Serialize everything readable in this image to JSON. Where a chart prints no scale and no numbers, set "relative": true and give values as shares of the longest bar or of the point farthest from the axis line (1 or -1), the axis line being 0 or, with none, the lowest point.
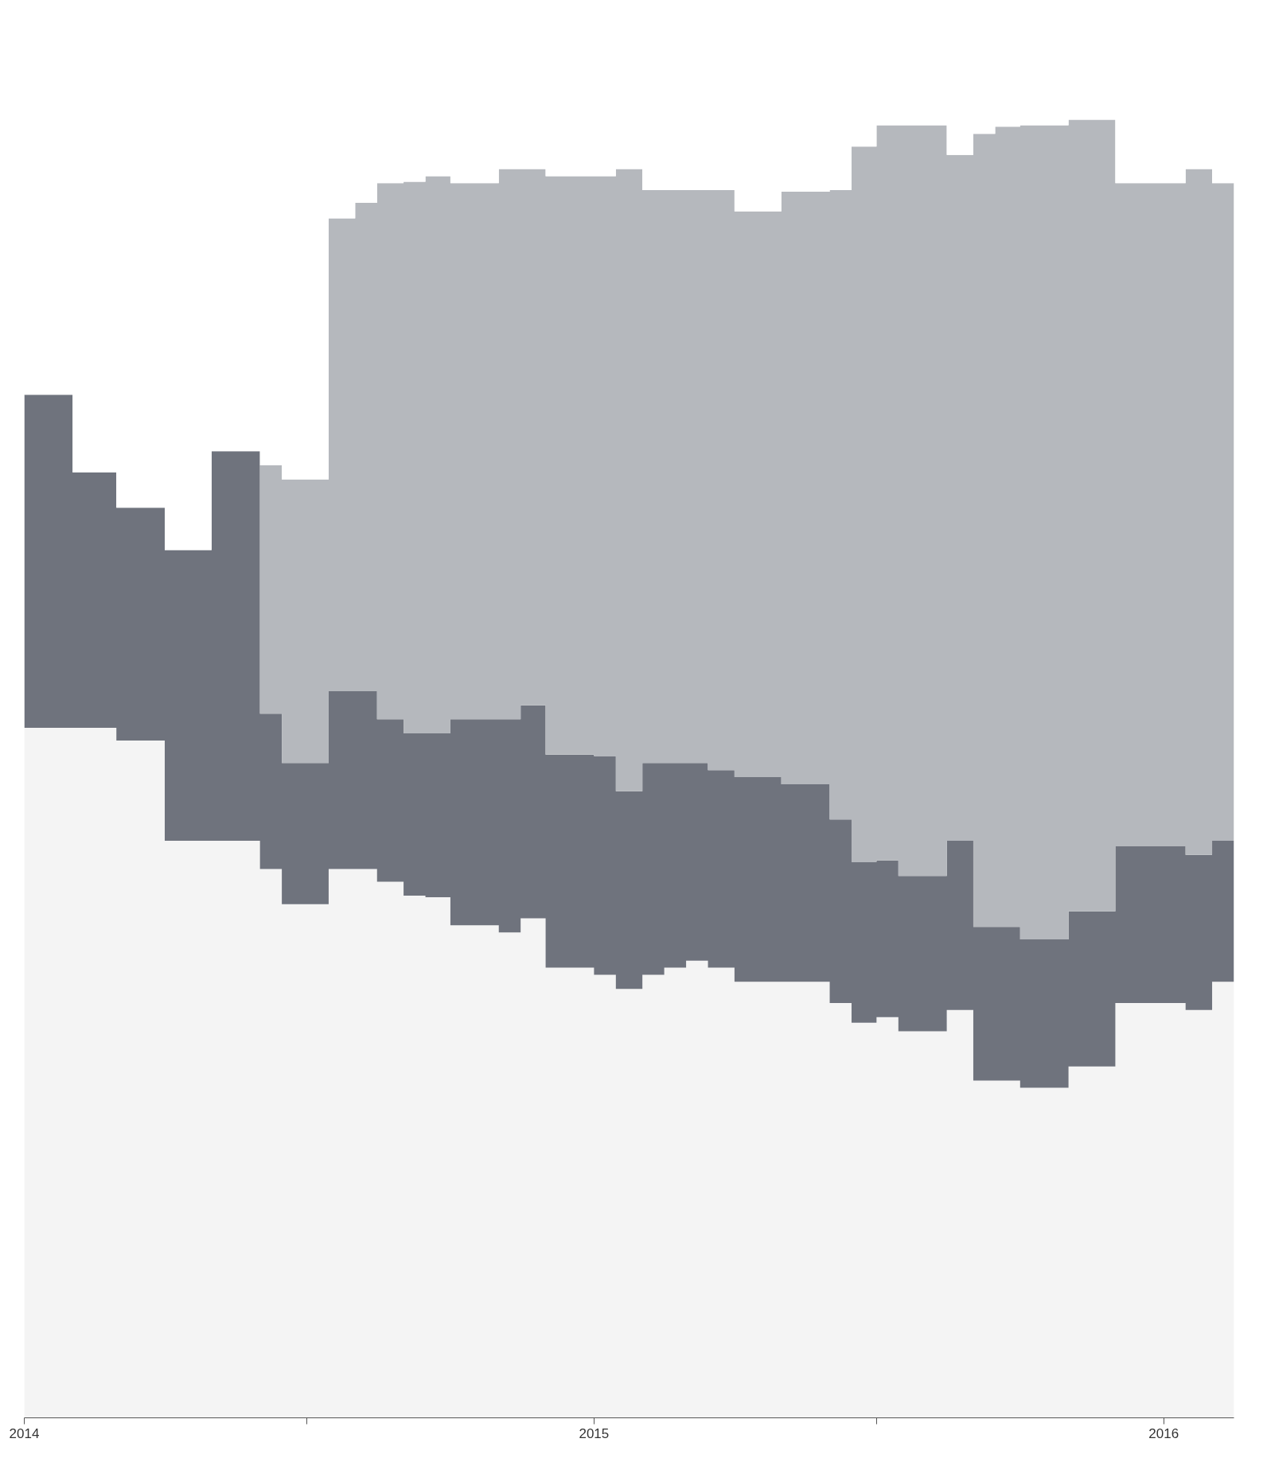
{
  "chart_data": {
    "type": "area",
    "stacked": true,
    "relative": true,
    "tick_labels": "x",
    "x": [
      "2014-01-01",
      "2014-02-01",
      "2014-03-01",
      "2014-04-01",
      "2014-05-01",
      "2014-06-01",
      "2014-06-15",
      "2014-07-15",
      "2014-08-01",
      "2014-08-15",
      "2014-09-01",
      "2014-09-15",
      "2014-10-01",
      "2014-11-01",
      "2014-11-15",
      "2014-12-01",
      "2015-01-01",
      "2015-01-15",
      "2015-02-01",
      "2015-02-15",
      "2015-03-01",
      "2015-03-15",
      "2015-04-01",
      "2015-04-15",
      "2015-05-01",
      "2015-06-01",
      "2015-06-15",
      "2015-07-01",
      "2015-07-15",
      "2015-08-15",
      "2015-09-01",
      "2015-09-15",
      "2015-10-01",
      "2015-11-01",
      "2015-12-01",
      "2016-01-15",
      "2016-02-01",
      "2016-02-15"
    ],
    "xlim": [
      "2014-01-01",
      "2016-02-15"
    ],
    "xticks": [
      {
        "value": "2014",
        "label": "2014"
      },
      {
        "value": "2014-07",
        "label": null
      },
      {
        "value": "2015",
        "label": "2015"
      },
      {
        "value": "2015-07",
        "label": null
      },
      {
        "value": "2016",
        "label": "2016"
      }
    ],
    "series": [
      {
        "color": "#f4f4f4",
        "values": [
          0.489,
          0.489,
          0.48,
          0.409,
          0.409,
          0.389,
          0.364,
          0.389,
          0.389,
          0.38,
          0.37,
          0.369,
          0.349,
          0.344,
          0.354,
          0.319,
          0.314,
          0.304,
          0.314,
          0.319,
          0.324,
          0.319,
          0.309,
          0.309,
          0.309,
          0.294,
          0.28,
          0.284,
          0.274,
          0.289,
          0.239,
          0.239,
          0.234,
          0.249,
          0.294,
          0.289,
          0.309,
          0.309
        ]
      },
      {
        "color": "#6f737d",
        "values": [
          0.236,
          0.181,
          0.165,
          0.206,
          0.276,
          0.11,
          0.1,
          0.126,
          0.126,
          0.115,
          0.115,
          0.116,
          0.146,
          0.151,
          0.151,
          0.151,
          0.155,
          0.14,
          0.15,
          0.145,
          0.14,
          0.14,
          0.145,
          0.145,
          0.14,
          0.13,
          0.114,
          0.111,
          0.11,
          0.12,
          0.109,
          0.109,
          0.105,
          0.11,
          0.111,
          0.11,
          0.1,
          0.1
        ]
      },
      {
        "color": "#b5b8bd",
        "values": [
          0,
          0,
          0,
          0,
          0,
          0.176,
          0.201,
          0.335,
          0.346,
          0.38,
          0.391,
          0.395,
          0.38,
          0.39,
          0.38,
          0.41,
          0.411,
          0.441,
          0.406,
          0.406,
          0.406,
          0.411,
          0.401,
          0.401,
          0.42,
          0.446,
          0.507,
          0.521,
          0.532,
          0.486,
          0.562,
          0.567,
          0.577,
          0.561,
          0.47,
          0.486,
          0.466,
          0.466
        ]
      },
      {
        "color": "#ffffff",
        "values": [
          0.275,
          0.33,
          0.355,
          0.385,
          0.315,
          0.325,
          0.335,
          0.15,
          0.139,
          0.125,
          0.124,
          0.12,
          0.125,
          0.115,
          0.115,
          0.12,
          0.12,
          0.115,
          0.13,
          0.13,
          0.13,
          0.13,
          0.145,
          0.145,
          0.131,
          0.13,
          0.099,
          0.084,
          0.084,
          0.105,
          0.09,
          0.085,
          0.084,
          0.08,
          0.125,
          0.115,
          0.125,
          0.125
        ]
      }
    ]
  }
}
